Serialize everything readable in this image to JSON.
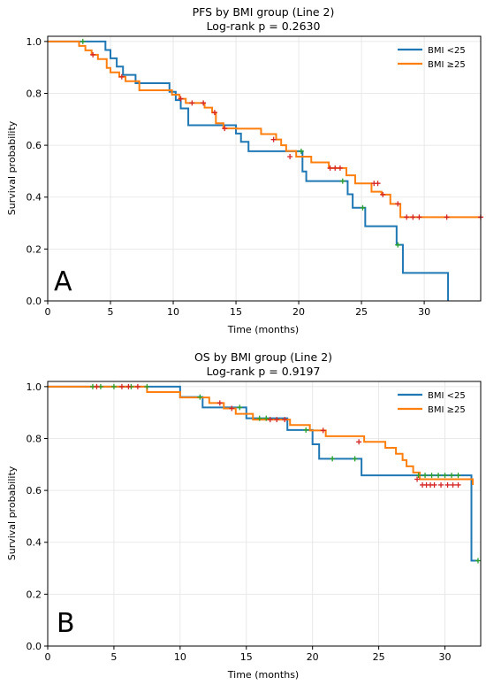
{
  "colors": {
    "bmi_low": "#1f77b4",
    "bmi_high": "#ff7f0e",
    "censor_low": "#2ca02c",
    "censor_high": "#d62728",
    "grid": "#e3e3e3"
  },
  "chart_data": [
    {
      "type": "line",
      "step": "post",
      "panel_label": "A",
      "title": "PFS by BMI group (Line 2)",
      "subtitle": "Log-rank p = 0.2630",
      "xlabel": "Time (months)",
      "ylabel": "Survival probability",
      "xlim": [
        0,
        34.5
      ],
      "ylim": [
        0,
        1.02
      ],
      "xticks": [
        0,
        5,
        10,
        15,
        20,
        25,
        30
      ],
      "yticks": [
        0.0,
        0.2,
        0.4,
        0.6,
        0.8,
        1.0
      ],
      "grid": true,
      "legend_position": "top-right",
      "series": [
        {
          "name": "BMI <25",
          "color": "#1f77b4",
          "x": [
            0,
            4.6,
            5.0,
            5.5,
            6.0,
            7.0,
            9.7,
            10.2,
            10.6,
            11.2,
            15.0,
            15.4,
            16.0,
            20.3,
            20.6,
            23.9,
            24.3,
            25.3,
            27.8,
            28.3,
            31.9
          ],
          "y": [
            1.0,
            0.967,
            0.935,
            0.903,
            0.871,
            0.839,
            0.806,
            0.774,
            0.742,
            0.677,
            0.645,
            0.613,
            0.577,
            0.499,
            0.462,
            0.411,
            0.359,
            0.288,
            0.216,
            0.108,
            0.0
          ],
          "censor_x": [
            2.8,
            20.2,
            23.5,
            25.1,
            27.9
          ],
          "censor_y": [
            1.0,
            0.577,
            0.462,
            0.359,
            0.216
          ]
        },
        {
          "name": "BMI ≥25",
          "color": "#ff7f0e",
          "x": [
            0,
            2.5,
            3.0,
            3.5,
            4.0,
            4.7,
            5.0,
            5.7,
            6.2,
            7.3,
            9.9,
            10.5,
            11.0,
            12.5,
            13.1,
            13.4,
            14.0,
            15.1,
            17.0,
            18.2,
            18.6,
            19.0,
            19.8,
            21.0,
            22.4,
            23.8,
            24.5,
            25.8,
            26.6,
            27.3,
            28.1
          ],
          "y": [
            1.0,
            0.983,
            0.966,
            0.949,
            0.932,
            0.898,
            0.881,
            0.864,
            0.847,
            0.812,
            0.795,
            0.779,
            0.763,
            0.745,
            0.726,
            0.685,
            0.665,
            0.664,
            0.643,
            0.622,
            0.6,
            0.578,
            0.556,
            0.534,
            0.512,
            0.484,
            0.453,
            0.421,
            0.41,
            0.374,
            0.323
          ],
          "censor_x": [
            3.6,
            5.9,
            10.6,
            11.5,
            12.4,
            13.3,
            14.1,
            18.0,
            19.3,
            22.5,
            22.9,
            23.3,
            26.0,
            26.3,
            26.7,
            27.9,
            28.6,
            29.1,
            29.6,
            31.8,
            34.5
          ],
          "censor_y": [
            0.949,
            0.864,
            0.779,
            0.763,
            0.763,
            0.726,
            0.665,
            0.622,
            0.556,
            0.512,
            0.512,
            0.512,
            0.453,
            0.453,
            0.41,
            0.374,
            0.323,
            0.323,
            0.323,
            0.323,
            0.323
          ]
        }
      ]
    },
    {
      "type": "line",
      "step": "post",
      "panel_label": "B",
      "title": "OS by BMI group (Line 2)",
      "subtitle": "Log-rank p = 0.9197",
      "xlabel": "Time (months)",
      "ylabel": "Survival probability",
      "xlim": [
        0,
        32.7
      ],
      "ylim": [
        0,
        1.02
      ],
      "xticks": [
        0,
        5,
        10,
        15,
        20,
        25,
        30
      ],
      "yticks": [
        0.0,
        0.2,
        0.4,
        0.6,
        0.8,
        1.0
      ],
      "grid": true,
      "legend_position": "top-right",
      "series": [
        {
          "name": "BMI <25",
          "color": "#1f77b4",
          "x": [
            0,
            10.0,
            11.7,
            15.0,
            18.1,
            20.0,
            20.5,
            23.7,
            32.0
          ],
          "y": [
            1.0,
            0.96,
            0.92,
            0.878,
            0.833,
            0.778,
            0.722,
            0.658,
            0.329
          ],
          "censor_x": [
            3.4,
            4.0,
            5.0,
            6.3,
            7.5,
            11.5,
            14.5,
            16.0,
            16.5,
            19.5,
            21.5,
            23.2,
            28.0,
            28.5,
            29.0,
            29.5,
            30.0,
            30.5,
            31.0,
            32.5
          ],
          "censor_y": [
            1.0,
            1.0,
            1.0,
            1.0,
            1.0,
            0.96,
            0.92,
            0.878,
            0.878,
            0.833,
            0.722,
            0.722,
            0.658,
            0.658,
            0.658,
            0.658,
            0.658,
            0.658,
            0.658,
            0.329
          ]
        },
        {
          "name": "BMI ≥25",
          "color": "#ff7f0e",
          "x": [
            0,
            7.5,
            10.0,
            12.2,
            13.3,
            14.2,
            15.5,
            18.3,
            19.8,
            21.0,
            23.9,
            25.5,
            26.3,
            26.8,
            27.1,
            27.6,
            28.1,
            32.1
          ],
          "y": [
            1.0,
            0.979,
            0.958,
            0.937,
            0.916,
            0.895,
            0.873,
            0.852,
            0.831,
            0.809,
            0.787,
            0.764,
            0.741,
            0.717,
            0.693,
            0.669,
            0.643,
            0.621
          ],
          "censor_x": [
            3.7,
            5.6,
            6.1,
            6.8,
            13.0,
            13.9,
            16.8,
            17.3,
            17.9,
            20.8,
            23.5,
            27.9,
            28.3,
            28.6,
            28.9,
            29.2,
            29.7,
            30.2,
            30.6,
            31.0
          ],
          "censor_y": [
            1.0,
            1.0,
            1.0,
            1.0,
            0.937,
            0.916,
            0.873,
            0.873,
            0.873,
            0.831,
            0.787,
            0.643,
            0.621,
            0.621,
            0.621,
            0.621,
            0.621,
            0.621,
            0.621,
            0.621
          ]
        }
      ]
    }
  ]
}
